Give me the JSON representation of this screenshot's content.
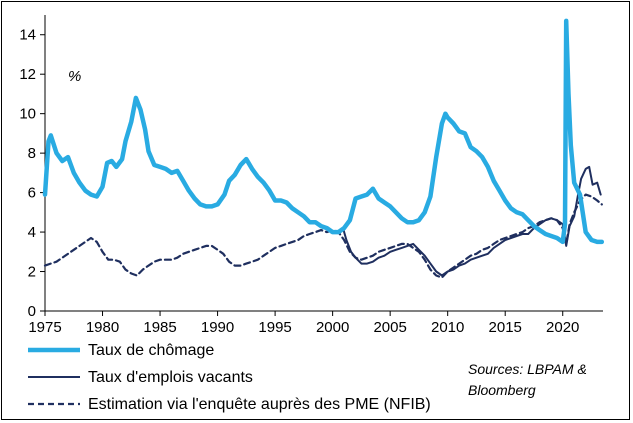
{
  "chart_data": {
    "type": "line",
    "ylabel_unit": "%",
    "xlim": [
      1975,
      2023.5
    ],
    "ylim": [
      0,
      15
    ],
    "yticks": [
      "0",
      "2",
      "4",
      "6",
      "8",
      "10",
      "12",
      "14"
    ],
    "xticks": [
      "1975",
      "1980",
      "1985",
      "1990",
      "1995",
      "2000",
      "2005",
      "2010",
      "2015",
      "2020"
    ],
    "grid": false,
    "legend_position": "bottom-left",
    "source_note": "Sources: LBPAM & Bloomberg",
    "series": [
      {
        "name": "Taux de chômage",
        "style": "solid-thick",
        "color": "#29ABE2",
        "points": [
          [
            1975.0,
            5.9
          ],
          [
            1975.3,
            8.6
          ],
          [
            1975.5,
            8.9
          ],
          [
            1976.0,
            8.0
          ],
          [
            1976.5,
            7.6
          ],
          [
            1977.0,
            7.8
          ],
          [
            1977.5,
            7.0
          ],
          [
            1978.0,
            6.5
          ],
          [
            1978.5,
            6.1
          ],
          [
            1979.0,
            5.9
          ],
          [
            1979.5,
            5.8
          ],
          [
            1980.0,
            6.3
          ],
          [
            1980.4,
            7.5
          ],
          [
            1980.8,
            7.6
          ],
          [
            1981.2,
            7.3
          ],
          [
            1981.7,
            7.7
          ],
          [
            1982.0,
            8.6
          ],
          [
            1982.5,
            9.6
          ],
          [
            1982.9,
            10.8
          ],
          [
            1983.3,
            10.2
          ],
          [
            1983.7,
            9.2
          ],
          [
            1984.0,
            8.1
          ],
          [
            1984.5,
            7.4
          ],
          [
            1985.0,
            7.3
          ],
          [
            1985.5,
            7.2
          ],
          [
            1986.0,
            7.0
          ],
          [
            1986.5,
            7.1
          ],
          [
            1987.0,
            6.6
          ],
          [
            1987.5,
            6.1
          ],
          [
            1988.0,
            5.7
          ],
          [
            1988.5,
            5.4
          ],
          [
            1989.0,
            5.3
          ],
          [
            1989.5,
            5.3
          ],
          [
            1990.0,
            5.4
          ],
          [
            1990.6,
            5.9
          ],
          [
            1991.0,
            6.6
          ],
          [
            1991.5,
            6.9
          ],
          [
            1992.0,
            7.4
          ],
          [
            1992.5,
            7.7
          ],
          [
            1993.0,
            7.2
          ],
          [
            1993.5,
            6.8
          ],
          [
            1994.0,
            6.5
          ],
          [
            1994.5,
            6.1
          ],
          [
            1995.0,
            5.6
          ],
          [
            1995.5,
            5.6
          ],
          [
            1996.0,
            5.5
          ],
          [
            1996.5,
            5.2
          ],
          [
            1997.0,
            5.0
          ],
          [
            1997.5,
            4.8
          ],
          [
            1998.0,
            4.5
          ],
          [
            1998.5,
            4.5
          ],
          [
            1999.0,
            4.3
          ],
          [
            1999.5,
            4.2
          ],
          [
            2000.0,
            4.0
          ],
          [
            2000.5,
            4.0
          ],
          [
            2001.0,
            4.2
          ],
          [
            2001.5,
            4.6
          ],
          [
            2002.0,
            5.7
          ],
          [
            2002.5,
            5.8
          ],
          [
            2003.0,
            5.9
          ],
          [
            2003.5,
            6.2
          ],
          [
            2004.0,
            5.7
          ],
          [
            2004.5,
            5.5
          ],
          [
            2005.0,
            5.3
          ],
          [
            2005.5,
            5.0
          ],
          [
            2006.0,
            4.7
          ],
          [
            2006.5,
            4.5
          ],
          [
            2007.0,
            4.5
          ],
          [
            2007.5,
            4.6
          ],
          [
            2008.0,
            5.0
          ],
          [
            2008.5,
            5.8
          ],
          [
            2009.0,
            7.8
          ],
          [
            2009.5,
            9.5
          ],
          [
            2009.8,
            10.0
          ],
          [
            2010.0,
            9.8
          ],
          [
            2010.5,
            9.5
          ],
          [
            2011.0,
            9.1
          ],
          [
            2011.5,
            9.0
          ],
          [
            2012.0,
            8.3
          ],
          [
            2012.5,
            8.1
          ],
          [
            2013.0,
            7.8
          ],
          [
            2013.5,
            7.3
          ],
          [
            2014.0,
            6.6
          ],
          [
            2014.5,
            6.1
          ],
          [
            2015.0,
            5.6
          ],
          [
            2015.5,
            5.2
          ],
          [
            2016.0,
            5.0
          ],
          [
            2016.5,
            4.9
          ],
          [
            2017.0,
            4.6
          ],
          [
            2017.5,
            4.3
          ],
          [
            2018.0,
            4.1
          ],
          [
            2018.5,
            3.9
          ],
          [
            2019.0,
            3.8
          ],
          [
            2019.5,
            3.7
          ],
          [
            2020.0,
            3.5
          ],
          [
            2020.2,
            4.4
          ],
          [
            2020.3,
            14.7
          ],
          [
            2020.5,
            11.0
          ],
          [
            2020.7,
            8.4
          ],
          [
            2021.0,
            6.5
          ],
          [
            2021.5,
            5.9
          ],
          [
            2022.0,
            4.0
          ],
          [
            2022.5,
            3.6
          ],
          [
            2023.0,
            3.5
          ],
          [
            2023.4,
            3.5
          ]
        ]
      },
      {
        "name": "Taux d'emplois vacants",
        "style": "solid-thin",
        "color": "#1F2F5F",
        "points": [
          [
            2000.9,
            4.2
          ],
          [
            2001.2,
            3.6
          ],
          [
            2001.6,
            3.0
          ],
          [
            2002.0,
            2.7
          ],
          [
            2002.5,
            2.4
          ],
          [
            2003.0,
            2.4
          ],
          [
            2003.5,
            2.5
          ],
          [
            2004.0,
            2.7
          ],
          [
            2004.5,
            2.8
          ],
          [
            2005.0,
            3.0
          ],
          [
            2005.5,
            3.1
          ],
          [
            2006.0,
            3.2
          ],
          [
            2006.5,
            3.3
          ],
          [
            2007.0,
            3.4
          ],
          [
            2007.5,
            3.1
          ],
          [
            2008.0,
            2.8
          ],
          [
            2008.5,
            2.4
          ],
          [
            2009.0,
            2.0
          ],
          [
            2009.5,
            1.8
          ],
          [
            2010.0,
            2.0
          ],
          [
            2010.5,
            2.1
          ],
          [
            2011.0,
            2.3
          ],
          [
            2011.5,
            2.4
          ],
          [
            2012.0,
            2.6
          ],
          [
            2012.5,
            2.7
          ],
          [
            2013.0,
            2.8
          ],
          [
            2013.5,
            2.9
          ],
          [
            2014.0,
            3.2
          ],
          [
            2014.5,
            3.4
          ],
          [
            2015.0,
            3.6
          ],
          [
            2015.5,
            3.7
          ],
          [
            2016.0,
            3.8
          ],
          [
            2016.5,
            3.9
          ],
          [
            2017.0,
            3.9
          ],
          [
            2017.5,
            4.2
          ],
          [
            2018.0,
            4.4
          ],
          [
            2018.5,
            4.6
          ],
          [
            2019.0,
            4.7
          ],
          [
            2019.5,
            4.6
          ],
          [
            2020.0,
            4.4
          ],
          [
            2020.3,
            3.3
          ],
          [
            2020.6,
            4.3
          ],
          [
            2021.0,
            4.8
          ],
          [
            2021.3,
            5.8
          ],
          [
            2021.6,
            6.7
          ],
          [
            2022.0,
            7.2
          ],
          [
            2022.3,
            7.3
          ],
          [
            2022.6,
            6.4
          ],
          [
            2023.0,
            6.5
          ],
          [
            2023.3,
            5.9
          ]
        ]
      },
      {
        "name": "Estimation via l'enquête auprès des PME (NFIB)",
        "style": "dashed",
        "color": "#1F2F5F",
        "points": [
          [
            1975.0,
            2.3
          ],
          [
            1975.5,
            2.4
          ],
          [
            1976.0,
            2.5
          ],
          [
            1976.5,
            2.7
          ],
          [
            1977.0,
            2.9
          ],
          [
            1977.5,
            3.1
          ],
          [
            1978.0,
            3.3
          ],
          [
            1978.5,
            3.5
          ],
          [
            1979.0,
            3.7
          ],
          [
            1979.5,
            3.5
          ],
          [
            1980.0,
            3.0
          ],
          [
            1980.5,
            2.6
          ],
          [
            1981.0,
            2.6
          ],
          [
            1981.5,
            2.5
          ],
          [
            1982.0,
            2.1
          ],
          [
            1982.5,
            1.9
          ],
          [
            1983.0,
            1.8
          ],
          [
            1983.5,
            2.1
          ],
          [
            1984.0,
            2.3
          ],
          [
            1984.5,
            2.5
          ],
          [
            1985.0,
            2.6
          ],
          [
            1985.5,
            2.6
          ],
          [
            1986.0,
            2.6
          ],
          [
            1986.5,
            2.7
          ],
          [
            1987.0,
            2.9
          ],
          [
            1987.5,
            3.0
          ],
          [
            1988.0,
            3.1
          ],
          [
            1988.5,
            3.2
          ],
          [
            1989.0,
            3.3
          ],
          [
            1989.5,
            3.3
          ],
          [
            1990.0,
            3.1
          ],
          [
            1990.5,
            2.9
          ],
          [
            1991.0,
            2.5
          ],
          [
            1991.5,
            2.3
          ],
          [
            1992.0,
            2.3
          ],
          [
            1992.5,
            2.4
          ],
          [
            1993.0,
            2.5
          ],
          [
            1993.5,
            2.6
          ],
          [
            1994.0,
            2.8
          ],
          [
            1994.5,
            3.0
          ],
          [
            1995.0,
            3.2
          ],
          [
            1995.5,
            3.3
          ],
          [
            1996.0,
            3.4
          ],
          [
            1996.5,
            3.5
          ],
          [
            1997.0,
            3.6
          ],
          [
            1997.5,
            3.8
          ],
          [
            1998.0,
            3.9
          ],
          [
            1998.5,
            4.0
          ],
          [
            1999.0,
            4.1
          ],
          [
            1999.5,
            4.0
          ],
          [
            2000.0,
            4.1
          ],
          [
            2000.5,
            4.0
          ],
          [
            2001.0,
            3.6
          ],
          [
            2001.5,
            3.0
          ],
          [
            2002.0,
            2.7
          ],
          [
            2002.5,
            2.6
          ],
          [
            2003.0,
            2.7
          ],
          [
            2003.5,
            2.8
          ],
          [
            2004.0,
            3.0
          ],
          [
            2004.5,
            3.1
          ],
          [
            2005.0,
            3.2
          ],
          [
            2005.5,
            3.3
          ],
          [
            2006.0,
            3.4
          ],
          [
            2006.5,
            3.4
          ],
          [
            2007.0,
            3.2
          ],
          [
            2007.5,
            3.0
          ],
          [
            2008.0,
            2.6
          ],
          [
            2008.5,
            2.1
          ],
          [
            2009.0,
            1.8
          ],
          [
            2009.5,
            1.7
          ],
          [
            2010.0,
            2.0
          ],
          [
            2010.5,
            2.2
          ],
          [
            2011.0,
            2.4
          ],
          [
            2011.5,
            2.6
          ],
          [
            2012.0,
            2.8
          ],
          [
            2012.5,
            2.9
          ],
          [
            2013.0,
            3.1
          ],
          [
            2013.5,
            3.2
          ],
          [
            2014.0,
            3.4
          ],
          [
            2014.5,
            3.6
          ],
          [
            2015.0,
            3.7
          ],
          [
            2015.5,
            3.8
          ],
          [
            2016.0,
            3.9
          ],
          [
            2016.5,
            4.0
          ],
          [
            2017.0,
            4.2
          ],
          [
            2017.5,
            4.3
          ],
          [
            2018.0,
            4.5
          ],
          [
            2018.5,
            4.6
          ],
          [
            2019.0,
            4.7
          ],
          [
            2019.5,
            4.6
          ],
          [
            2020.0,
            4.2
          ],
          [
            2020.3,
            3.4
          ],
          [
            2020.6,
            4.4
          ],
          [
            2021.0,
            5.0
          ],
          [
            2021.5,
            5.6
          ],
          [
            2022.0,
            5.9
          ],
          [
            2022.5,
            5.8
          ],
          [
            2023.0,
            5.6
          ],
          [
            2023.4,
            5.4
          ]
        ]
      }
    ]
  }
}
